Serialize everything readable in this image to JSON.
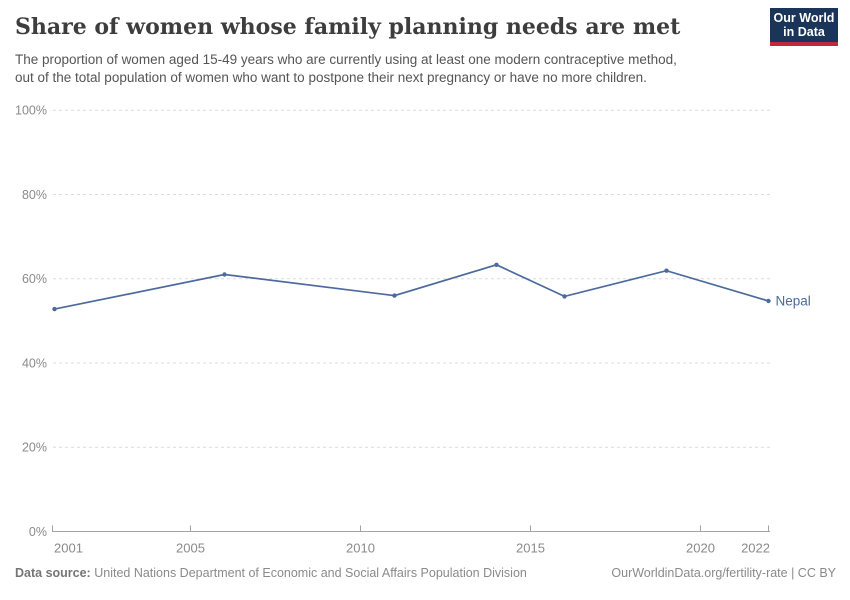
{
  "header": {
    "title": "Share of women whose family planning needs are met",
    "logo": {
      "line1": "Our World",
      "line2": "in Data"
    }
  },
  "subtitle": {
    "line1": "The proportion of women aged 15-49 years who are currently using at least one modern contraceptive method,",
    "line2": "out of the total population of women who want to postpone their next pregnancy or have no more children."
  },
  "chart_data": {
    "type": "line",
    "title": "Share of women whose family planning needs are met",
    "x": [
      2001,
      2006,
      2011,
      2014,
      2016,
      2019,
      2022
    ],
    "series": [
      {
        "name": "Nepal",
        "values": [
          52.8,
          61.0,
          56.0,
          63.3,
          55.8,
          61.9,
          54.7
        ],
        "color": "#4C6A9C"
      }
    ],
    "xlabel": "",
    "ylabel": "",
    "ylim": [
      0,
      100
    ],
    "yticks": [
      0,
      20,
      40,
      60,
      80,
      100
    ],
    "ytick_suffix": "%",
    "xticks": [
      2001,
      2005,
      2010,
      2015,
      2020,
      2022
    ],
    "grid": "horizontal-dashed",
    "legend_position": "end-of-line-label"
  },
  "footer": {
    "datasource_label": "Data source:",
    "datasource": "United Nations Department of Economic and Social Affairs Population Division",
    "credit": "OurWorldinData.org/fertility-rate | CC BY"
  },
  "colors": {
    "line": "#4C6A9C",
    "grid": "#dcdcdc",
    "axis": "#a3a3a3",
    "axis_text": "#8a8a8a",
    "logo_navy": "#1b3459",
    "logo_red": "#c0293c"
  }
}
